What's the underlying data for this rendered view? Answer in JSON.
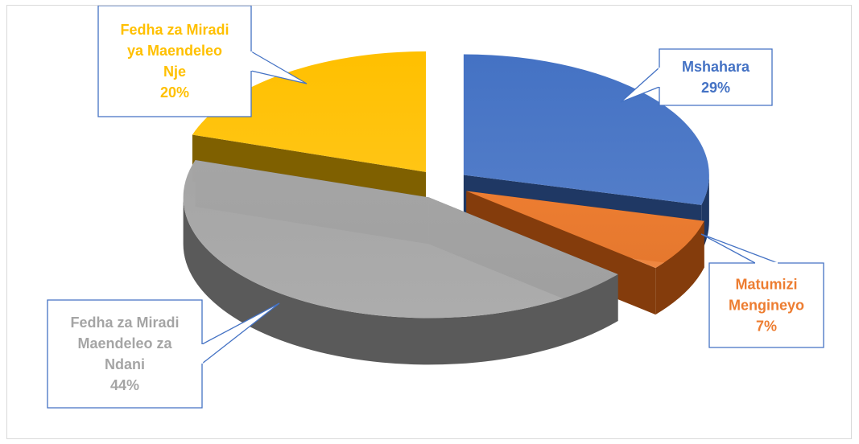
{
  "chart_data": {
    "type": "pie",
    "title": "",
    "legend": "none",
    "slices": [
      {
        "label_lines": [
          "Mshahara"
        ],
        "percent_label": "29%",
        "value": 29,
        "color": "#4472c4",
        "side_color": "#1f3864"
      },
      {
        "label_lines": [
          "Matumizi",
          "Mengineyo"
        ],
        "percent_label": "7%",
        "value": 7,
        "color": "#ed7d31",
        "side_color": "#843c0c"
      },
      {
        "label_lines": [
          "Fedha za Miradi",
          "Maendeleo za",
          "Ndani"
        ],
        "percent_label": "44%",
        "value": 44,
        "color": "#a5a5a5",
        "side_color": "#5a5a5a"
      },
      {
        "label_lines": [
          "Fedha za Miradi",
          "ya Maendeleo",
          "Nje"
        ],
        "percent_label": "20%",
        "value": 20,
        "color": "#ffc000",
        "side_color": "#7f6000"
      }
    ]
  }
}
